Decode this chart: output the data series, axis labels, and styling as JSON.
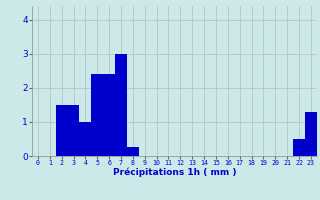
{
  "hours": [
    0,
    1,
    2,
    3,
    4,
    5,
    6,
    7,
    8,
    9,
    10,
    11,
    12,
    13,
    14,
    15,
    16,
    17,
    18,
    19,
    20,
    21,
    22,
    23
  ],
  "values": [
    0,
    0,
    1.5,
    1.5,
    1.0,
    2.4,
    2.4,
    3.0,
    0.25,
    0,
    0,
    0,
    0,
    0,
    0,
    0,
    0,
    0,
    0,
    0,
    0,
    0,
    0.5,
    1.3
  ],
  "bar_color": "#0000cc",
  "background_color": "#cce8e8",
  "grid_color": "#aaaaaa",
  "xlabel": "Précipitations 1h ( mm )",
  "xlabel_color": "#0000cc",
  "tick_color": "#0000cc",
  "ylim": [
    0,
    4.4
  ],
  "yticks": [
    0,
    1,
    2,
    3,
    4
  ]
}
